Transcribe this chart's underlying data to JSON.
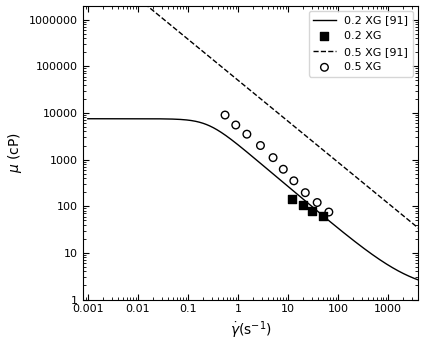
{
  "title": "",
  "xlabel": "$\\dot{\\gamma}$(s$^{-1}$)",
  "ylabel": "$\\mu$ (cP)",
  "background_color": "#ffffff",
  "line_02XG_91": {
    "label": "0.2 XG [91]",
    "color": "black",
    "linestyle": "solid",
    "linewidth": 1.0,
    "mu0": 7500,
    "muinf": 1.5,
    "lambda": 4.0,
    "n": 0.09
  },
  "line_05XG_91": {
    "label": "0.5 XG [91]",
    "color": "black",
    "linestyle": "dashed",
    "linewidth": 1.0,
    "K": 50000,
    "n_exp": -0.88
  },
  "scatter_02XG": {
    "label": "0.2 XG",
    "x": [
      12.0,
      20.0,
      30.0,
      50.0
    ],
    "y": [
      140.0,
      105.0,
      80.0,
      62.0
    ],
    "marker": "s",
    "color": "black",
    "facecolor": "black",
    "size": 35
  },
  "scatter_05XG": {
    "label": "0.5 XG",
    "x": [
      0.55,
      0.9,
      1.5,
      2.8,
      5.0,
      8.0,
      13.0,
      22.0,
      38.0,
      65.0
    ],
    "y": [
      9000.0,
      5500.0,
      3500.0,
      2000.0,
      1100.0,
      620.0,
      350.0,
      195.0,
      120.0,
      75.0
    ],
    "marker": "o",
    "color": "black",
    "facecolor": "none",
    "size": 30
  },
  "legend": {
    "loc": "upper right",
    "fontsize": 8,
    "frameon": true
  },
  "xticks": [
    0.001,
    0.01,
    0.1,
    1,
    10,
    100,
    1000
  ],
  "xtick_labels": [
    "0.001",
    "0.01",
    "0.1",
    "1",
    "10",
    "100",
    "1000"
  ],
  "yticks": [
    1,
    10,
    100,
    1000,
    10000,
    100000,
    1000000
  ],
  "ytick_labels": [
    "1",
    "10",
    "100",
    "1000",
    "10000",
    "100000",
    "1000000"
  ],
  "xlim": [
    0.0008,
    4000
  ],
  "ylim": [
    1.0,
    2000000
  ]
}
